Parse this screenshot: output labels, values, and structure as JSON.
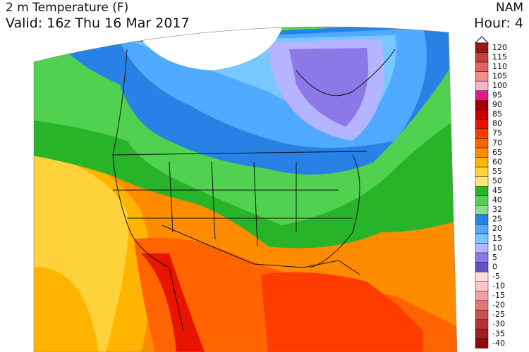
{
  "header": {
    "title": "2 m Temperature (F)",
    "model": "NAM",
    "valid": "Valid: 16z Thu 16 Mar 2017",
    "hour": "Hour: 4"
  },
  "legend": {
    "entries": [
      {
        "label": "120",
        "color": "#a01414"
      },
      {
        "label": "115",
        "color": "#c83c3c"
      },
      {
        "label": "110",
        "color": "#e06464"
      },
      {
        "label": "105",
        "color": "#f08c8c"
      },
      {
        "label": "100",
        "color": "#f8b4c8"
      },
      {
        "label": "95",
        "color": "#e8148c"
      },
      {
        "label": "90",
        "color": "#a00000"
      },
      {
        "label": "85",
        "color": "#c80000"
      },
      {
        "label": "80",
        "color": "#e81400"
      },
      {
        "label": "75",
        "color": "#ff3c00"
      },
      {
        "label": "70",
        "color": "#ff6400"
      },
      {
        "label": "65",
        "color": "#ff8c00"
      },
      {
        "label": "60",
        "color": "#ffb400"
      },
      {
        "label": "55",
        "color": "#ffd23c"
      },
      {
        "label": "50",
        "color": "#ffe678"
      },
      {
        "label": "45",
        "color": "#28b428"
      },
      {
        "label": "40",
        "color": "#50d250"
      },
      {
        "label": "32",
        "color": "#8cdc8c"
      },
      {
        "label": "25",
        "color": "#2882e6"
      },
      {
        "label": "20",
        "color": "#50aaff"
      },
      {
        "label": "15",
        "color": "#78c8ff"
      },
      {
        "label": "10",
        "color": "#b4b4ff"
      },
      {
        "label": "5",
        "color": "#8c78e6"
      },
      {
        "label": "0",
        "color": "#6450c8"
      },
      {
        "label": "-5",
        "color": "#ffdcdc"
      },
      {
        "label": "-10",
        "color": "#ffc8c8"
      },
      {
        "label": "-15",
        "color": "#f0a0a0"
      },
      {
        "label": "-20",
        "color": "#e07878"
      },
      {
        "label": "-25",
        "color": "#c85050"
      },
      {
        "label": "-30",
        "color": "#b43232"
      },
      {
        "label": "-35",
        "color": "#a01e1e"
      },
      {
        "label": "-40",
        "color": "#8c0a0a"
      }
    ]
  }
}
